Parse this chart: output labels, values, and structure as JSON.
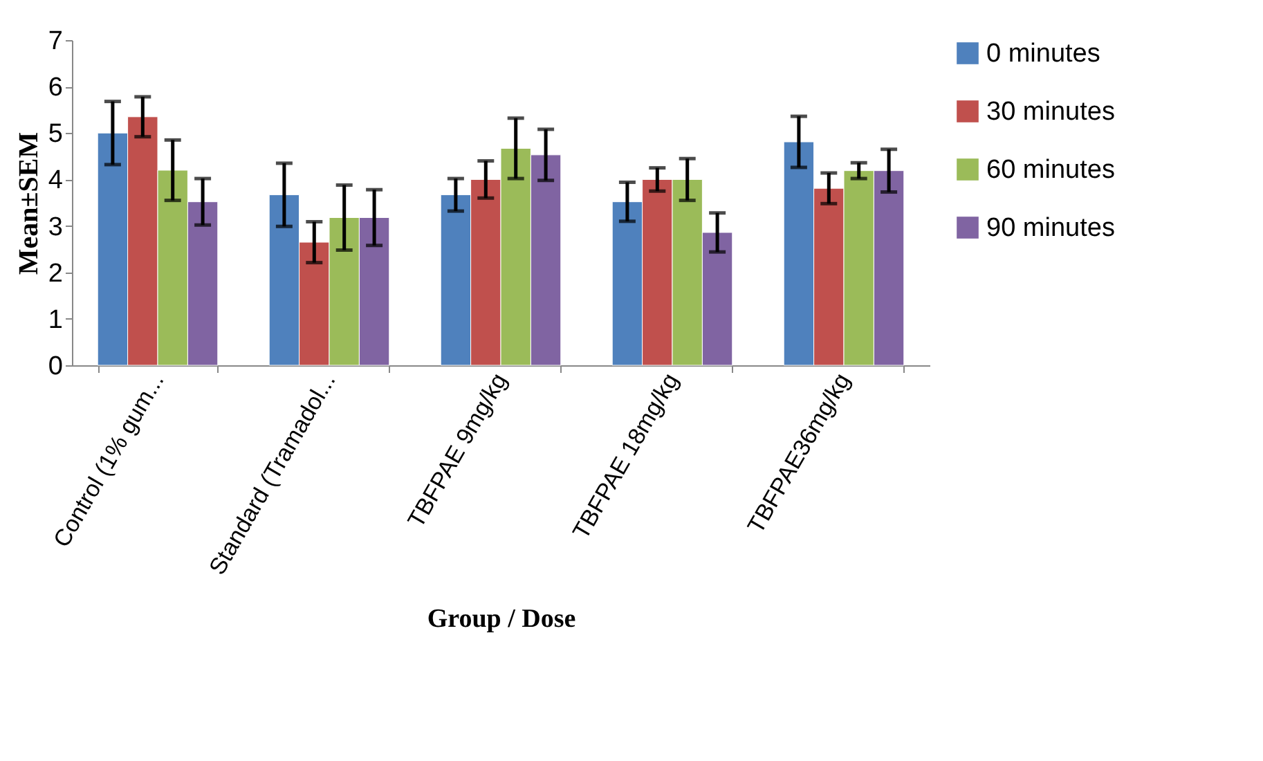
{
  "chart_data": {
    "type": "bar",
    "xlabel": "Group / Dose",
    "ylabel": "Mean±SEM",
    "categories": [
      "Control (1% gum...",
      "Standard (Tramadol...",
      "TBFPAE 9mg/kg",
      "TBFPAE 18mg/kg",
      "TBFPAE36mg/kg"
    ],
    "series": [
      {
        "name": "0 minutes",
        "color": "#4f81bd",
        "values": [
          5.0,
          3.67,
          3.67,
          3.52,
          4.81
        ],
        "errors": [
          0.68,
          0.68,
          0.35,
          0.42,
          0.55
        ]
      },
      {
        "name": "30 minutes",
        "color": "#c0504d",
        "values": [
          5.35,
          2.65,
          4.0,
          4.0,
          3.81
        ],
        "errors": [
          0.43,
          0.44,
          0.4,
          0.25,
          0.33
        ]
      },
      {
        "name": "60 minutes",
        "color": "#9bbb59",
        "values": [
          4.2,
          3.18,
          4.67,
          4.0,
          4.19
        ],
        "errors": [
          0.65,
          0.7,
          0.65,
          0.45,
          0.17
        ]
      },
      {
        "name": "90 minutes",
        "color": "#8064a2",
        "values": [
          3.52,
          3.18,
          4.53,
          2.86,
          4.19
        ],
        "errors": [
          0.5,
          0.6,
          0.55,
          0.42,
          0.46
        ]
      }
    ],
    "ylim": [
      0,
      7
    ],
    "yticks": [
      0,
      1,
      2,
      3,
      4,
      5,
      6,
      7
    ],
    "grid": false,
    "legend": "right"
  }
}
